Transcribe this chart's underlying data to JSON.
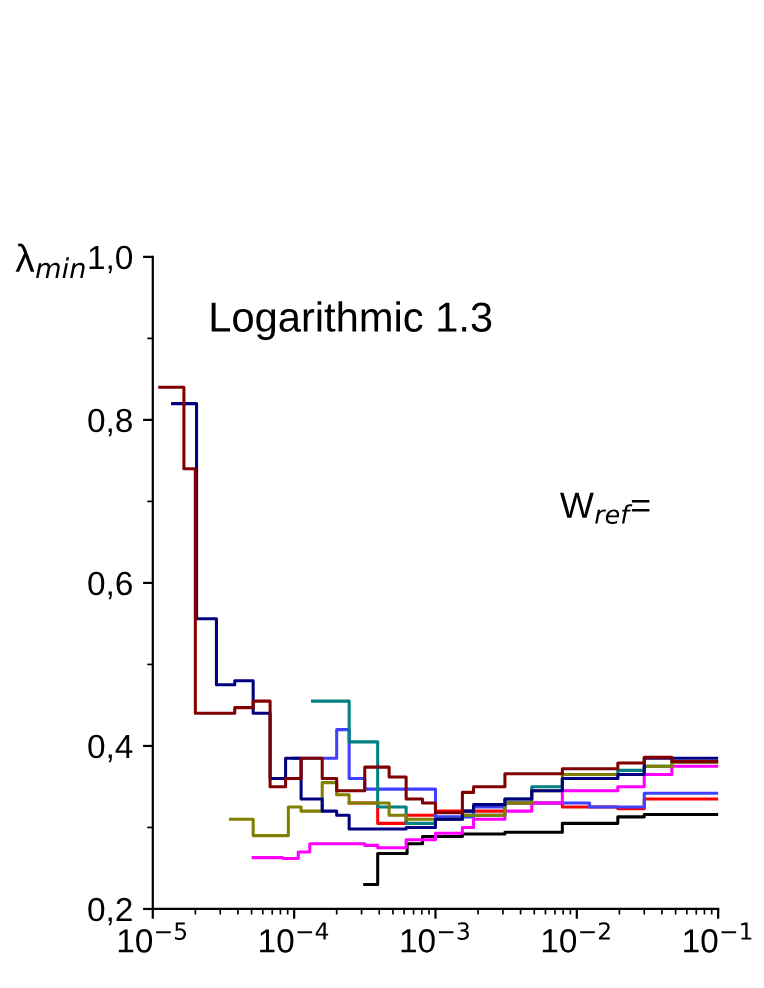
{
  "chart_data": {
    "type": "step",
    "title": "Logarithmic 1.3",
    "ylabel": "λ$_{min}$",
    "annotations": [
      "W$_{ref}$="
    ],
    "series": [
      {
        "color": "#000000",
        "x": [
          0.000316,
          0.00039,
          0.00063,
          0.00081,
          0.00155,
          0.0031,
          0.0079,
          0.0195,
          0.03,
          0.1
        ],
        "values": [
          0.23,
          0.268,
          0.28,
          0.289,
          0.292,
          0.294,
          0.305,
          0.313,
          0.316,
          0.316
        ]
      },
      {
        "color": "#ff0000",
        "x": [
          0.000245,
          0.00039,
          0.00062,
          0.001,
          0.00155,
          0.0031,
          0.0079,
          0.0195,
          0.03,
          0.1
        ],
        "values": [
          0.33,
          0.305,
          0.315,
          0.32,
          0.32,
          0.33,
          0.325,
          0.323,
          0.335,
          0.335
        ]
      },
      {
        "color": "#4040ff",
        "x": [
          0.0001,
          0.0002,
          0.000245,
          0.000316,
          0.001,
          0.00186,
          0.0031,
          0.0123,
          0.03,
          0.1
        ],
        "values": [
          0.385,
          0.42,
          0.36,
          0.347,
          0.313,
          0.325,
          0.33,
          0.325,
          0.342,
          0.342
        ]
      },
      {
        "color": "#008080",
        "x": [
          0.000135,
          0.000245,
          0.00039,
          0.00062,
          0.001,
          0.00155,
          0.0031,
          0.0048,
          0.0079,
          0.0195,
          0.03,
          0.047,
          0.1
        ],
        "values": [
          0.455,
          0.405,
          0.325,
          0.305,
          0.31,
          0.315,
          0.335,
          0.35,
          0.36,
          0.37,
          0.375,
          0.38,
          0.38
        ]
      },
      {
        "color": "#ff00ff",
        "x": [
          5.13e-05,
          8.3e-05,
          0.000107,
          0.000129,
          0.000316,
          0.00039,
          0.00062,
          0.001,
          0.00155,
          0.00186,
          0.0031,
          0.0048,
          0.0079,
          0.0195,
          0.03,
          0.047,
          0.1
        ],
        "values": [
          0.263,
          0.262,
          0.27,
          0.28,
          0.278,
          0.275,
          0.285,
          0.293,
          0.3,
          0.31,
          0.32,
          0.33,
          0.345,
          0.35,
          0.365,
          0.375,
          0.375
        ]
      },
      {
        "color": "#808000",
        "x": [
          3.55e-05,
          5.13e-05,
          9.1e-05,
          0.000112,
          0.000158,
          0.0002,
          0.000245,
          0.00047,
          0.00062,
          0.001,
          0.00155,
          0.0031,
          0.0048,
          0.0079,
          0.0195,
          0.03,
          0.047,
          0.1
        ],
        "values": [
          0.31,
          0.29,
          0.325,
          0.32,
          0.355,
          0.34,
          0.33,
          0.315,
          0.31,
          0.31,
          0.315,
          0.33,
          0.345,
          0.365,
          0.365,
          0.375,
          0.38,
          0.38
        ]
      },
      {
        "color": "#000080",
        "x": [
          1.38e-05,
          2.04e-05,
          2.82e-05,
          3.8e-05,
          5.13e-05,
          6.76e-05,
          8.7e-05,
          0.000112,
          0.000158,
          0.0002,
          0.000245,
          0.00062,
          0.001,
          0.00155,
          0.00186,
          0.0031,
          0.0048,
          0.0079,
          0.0195,
          0.03,
          0.1
        ],
        "values": [
          0.82,
          0.556,
          0.475,
          0.48,
          0.44,
          0.36,
          0.385,
          0.335,
          0.32,
          0.315,
          0.298,
          0.3,
          0.31,
          0.32,
          0.328,
          0.335,
          0.345,
          0.36,
          0.365,
          0.385,
          0.385
        ]
      },
      {
        "color": "#800000",
        "x": [
          1.12e-05,
          1.66e-05,
          2e-05,
          3.8e-05,
          5.13e-05,
          6.76e-05,
          8.7e-05,
          0.000112,
          0.000158,
          0.0002,
          0.000316,
          0.00047,
          0.00062,
          0.00081,
          0.001,
          0.00155,
          0.00186,
          0.0031,
          0.0079,
          0.0195,
          0.03,
          0.047,
          0.1
        ],
        "values": [
          0.84,
          0.74,
          0.44,
          0.447,
          0.455,
          0.35,
          0.36,
          0.385,
          0.36,
          0.345,
          0.374,
          0.362,
          0.335,
          0.33,
          0.318,
          0.343,
          0.35,
          0.366,
          0.372,
          0.379,
          0.386,
          0.381,
          0.381
        ]
      }
    ],
    "log": "x",
    "xlim": [
      1e-05,
      0.1
    ],
    "ylim": [
      0.2,
      1.0
    ],
    "xticks": [
      {
        "value": 1e-05,
        "label": "10$^{−5}$"
      },
      {
        "value": 0.0001,
        "label": "10$^{−4}$"
      },
      {
        "value": 0.001,
        "label": "10$^{−3}$"
      },
      {
        "value": 0.01,
        "label": "10$^{−2}$"
      },
      {
        "value": 0.1,
        "label": "10$^{−1}$"
      }
    ],
    "yticks": [
      {
        "value": 0.2,
        "label": "0,2"
      },
      {
        "value": 0.4,
        "label": "0,4"
      },
      {
        "value": 0.6,
        "label": "0,6"
      },
      {
        "value": 0.8,
        "label": "0,8"
      },
      {
        "value": 1.0,
        "label": "1,0"
      }
    ],
    "grid": false,
    "legend": false
  }
}
